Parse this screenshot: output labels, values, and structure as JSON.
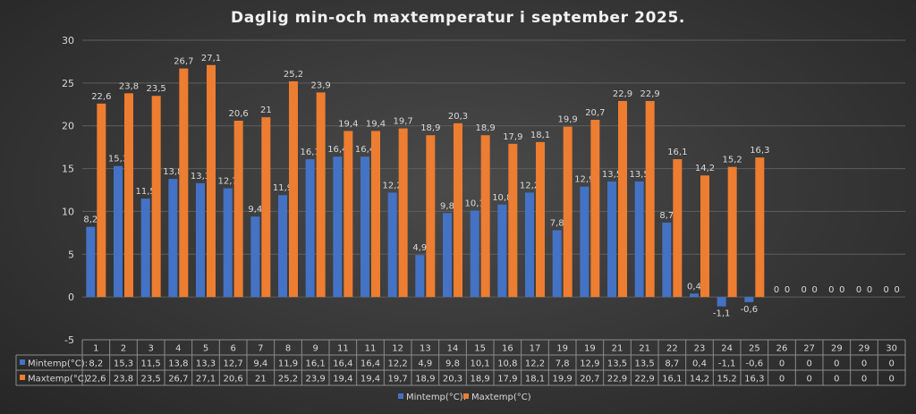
{
  "chart_data": {
    "type": "bar",
    "title": "Daglig min-och maxtemperatur i september 2025.",
    "categories": [
      "1",
      "2",
      "3",
      "4",
      "5",
      "6",
      "7",
      "8",
      "9",
      "11",
      "11",
      "12",
      "13",
      "14",
      "15",
      "16",
      "17",
      "19",
      "19",
      "21",
      "21",
      "22",
      "23",
      "24",
      "25",
      "26",
      "27",
      "29",
      "29",
      "30"
    ],
    "series": [
      {
        "name": "Mintemp(°C):",
        "color": "#4472c4",
        "values": [
          8.2,
          15.3,
          11.5,
          13.8,
          13.3,
          12.7,
          9.4,
          11.9,
          16.1,
          16.4,
          16.4,
          12.2,
          4.9,
          9.8,
          10.1,
          10.8,
          12.2,
          7.8,
          12.9,
          13.5,
          13.5,
          8.7,
          0.4,
          -1.1,
          -0.6,
          0,
          0,
          0,
          0,
          0
        ],
        "labels": [
          "8,2",
          "15,3",
          "11,5",
          "13,8",
          "13,3",
          "12,7",
          "9,4",
          "11,9",
          "16,1",
          "16,4",
          "16,4",
          "12,2",
          "4,9",
          "9,8",
          "10,1",
          "10,8",
          "12,2",
          "7,8",
          "12,9",
          "13,5",
          "13,5",
          "8,7",
          "0,4",
          "-1,1",
          "-0,6",
          "0",
          "0",
          "0",
          "0",
          "0"
        ]
      },
      {
        "name": "Maxtemp(°C)",
        "color": "#ed7d31",
        "values": [
          22.6,
          23.8,
          23.5,
          26.7,
          27.1,
          20.6,
          21,
          25.2,
          23.9,
          19.4,
          19.4,
          19.7,
          18.9,
          20.3,
          18.9,
          17.9,
          18.1,
          19.9,
          20.7,
          22.9,
          22.9,
          16.1,
          14.2,
          15.2,
          16.3,
          0,
          0,
          0,
          0,
          0
        ],
        "labels": [
          "22,6",
          "23,8",
          "23,5",
          "26,7",
          "27,1",
          "20,6",
          "21",
          "25,2",
          "23,9",
          "19,4",
          "19,4",
          "19,7",
          "18,9",
          "20,3",
          "18,9",
          "17,9",
          "18,1",
          "19,9",
          "20,7",
          "22,9",
          "22,9",
          "16,1",
          "14,2",
          "15,2",
          "16,3",
          "0",
          "0",
          "0",
          "0",
          "0"
        ]
      }
    ],
    "ylim": [
      -5,
      30
    ],
    "yticks": [
      "-5",
      "0",
      "5",
      "10",
      "15",
      "20",
      "25",
      "30"
    ],
    "grid": true,
    "legend": "bottom-center",
    "data_table": true
  }
}
